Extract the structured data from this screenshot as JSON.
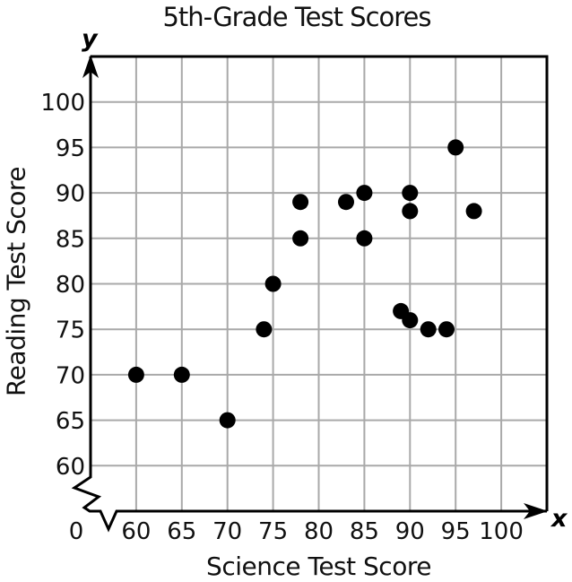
{
  "figure": {
    "y_axis_symbol": "y",
    "x_axis_symbol": "x",
    "origin_label": "0"
  },
  "chart_data": {
    "type": "scatter",
    "title": "5th-Grade Test Scores",
    "xlabel": "Science Test Score",
    "ylabel": "Reading Test Score",
    "xlim": [
      55,
      105
    ],
    "ylim": [
      55,
      105
    ],
    "x_ticks": [
      60,
      65,
      70,
      75,
      80,
      85,
      90,
      95,
      100
    ],
    "y_ticks": [
      60,
      65,
      70,
      75,
      80,
      85,
      90,
      95,
      100
    ],
    "grid": true,
    "legend": false,
    "axis_break_near_origin": true,
    "points": [
      [
        60,
        70
      ],
      [
        65,
        70
      ],
      [
        70,
        65
      ],
      [
        74,
        75
      ],
      [
        75,
        80
      ],
      [
        78,
        85
      ],
      [
        78,
        89
      ],
      [
        83,
        89
      ],
      [
        85,
        85
      ],
      [
        85,
        90
      ],
      [
        89,
        77
      ],
      [
        90,
        76
      ],
      [
        90,
        88
      ],
      [
        90,
        90
      ],
      [
        92,
        75
      ],
      [
        94,
        75
      ],
      [
        95,
        95
      ],
      [
        97,
        88
      ]
    ],
    "point_radius_px": 9,
    "colors": {
      "point": "#000000",
      "grid": "#a9a9a9",
      "axis": "#000000",
      "text": "#111111",
      "background": "#ffffff"
    }
  }
}
